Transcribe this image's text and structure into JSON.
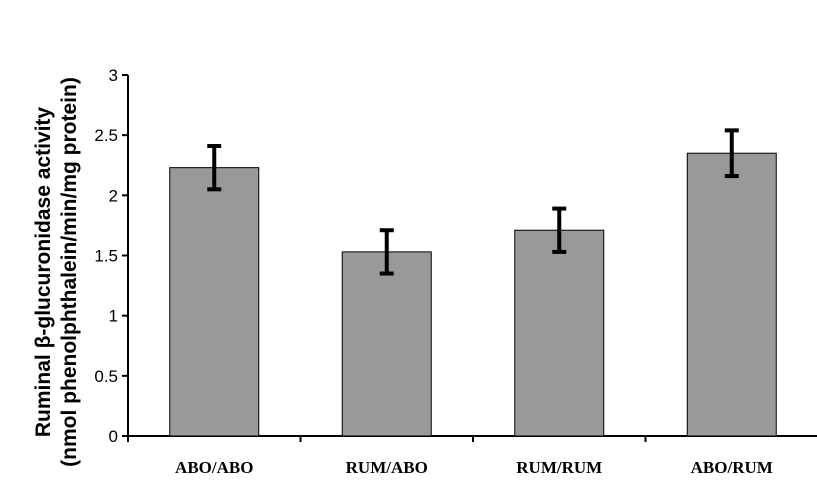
{
  "chart_data": {
    "type": "bar",
    "title": "",
    "xlabel": "",
    "ylabel_line1": "Ruminal β-glucuronidase activity",
    "ylabel_line2": "(nmol phenolphthalein/min/mg protein)",
    "categories": [
      "ABO/ABO",
      "RUM/ABO",
      "RUM/RUM",
      "ABO/RUM"
    ],
    "values": [
      2.23,
      1.53,
      1.71,
      2.35
    ],
    "errors": [
      0.18,
      0.18,
      0.18,
      0.19
    ],
    "ylim": [
      0,
      3
    ],
    "yticks": [
      "0",
      "0.5",
      "1",
      "1.5",
      "2",
      "2.5",
      "3"
    ],
    "grid": false,
    "colors": {
      "bar_fill": "#999999",
      "bar_stroke": "#000000",
      "error_bar": "#000000",
      "axis": "#000000"
    }
  }
}
